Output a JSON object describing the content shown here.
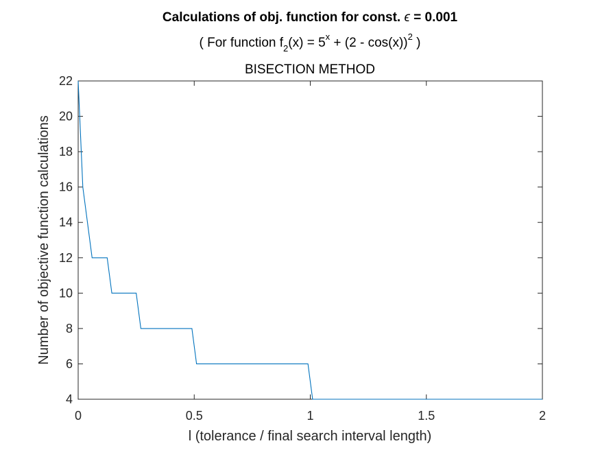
{
  "chart_data": {
    "type": "line",
    "title": {
      "line1_prefix": "Calculations of obj. function for const. ",
      "line1_symbol": "ϵ",
      "line1_suffix": " = 0.001",
      "line2_a": "( For function f",
      "line2_sub": "2",
      "line2_b": "(x) = 5",
      "line2_sup1": "x",
      "line2_c": " + (2 - cos(x))",
      "line2_sup2": "2",
      "line2_d": " )",
      "line3": "BISECTION METHOD"
    },
    "xlabel": "l (tolerance / final search interval length)",
    "ylabel": "Number of objective function calculations",
    "xlim": [
      0,
      2
    ],
    "ylim": [
      4,
      22
    ],
    "xticks": [
      0,
      0.5,
      1,
      1.5,
      2
    ],
    "xtick_labels": [
      "0",
      "0.5",
      "1",
      "1.5",
      "2"
    ],
    "yticks": [
      4,
      6,
      8,
      10,
      12,
      14,
      16,
      18,
      20,
      22
    ],
    "ytick_labels": [
      "4",
      "6",
      "8",
      "10",
      "12",
      "14",
      "16",
      "18",
      "20",
      "22"
    ],
    "grid": false,
    "line_color": "#0072BD",
    "series": [
      {
        "x": [
          0,
          0.02,
          0.06,
          0.125,
          0.145,
          0.25,
          0.27,
          0.49,
          0.51,
          0.99,
          1.01,
          2.0
        ],
        "y": [
          22,
          16,
          12,
          12,
          10,
          10,
          8,
          8,
          6,
          6,
          4,
          4
        ]
      }
    ]
  }
}
